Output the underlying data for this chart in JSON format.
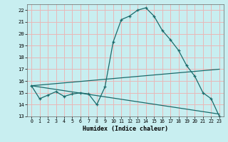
{
  "background_color": "#c8eef0",
  "grid_color": "#e8b8b8",
  "line_color": "#1a6b6b",
  "x_label": "Humidex (Indice chaleur)",
  "ylim": [
    13,
    22.5
  ],
  "xlim": [
    -0.5,
    23.5
  ],
  "yticks": [
    13,
    14,
    15,
    16,
    17,
    18,
    19,
    20,
    21,
    22
  ],
  "xticks": [
    0,
    1,
    2,
    3,
    4,
    5,
    6,
    7,
    8,
    9,
    10,
    11,
    12,
    13,
    14,
    15,
    16,
    17,
    18,
    19,
    20,
    21,
    22,
    23
  ],
  "series1_x": [
    0,
    1,
    2,
    3,
    4,
    5,
    6,
    7,
    8,
    9,
    10,
    11,
    12,
    13,
    14,
    15,
    16,
    17,
    18,
    19,
    20,
    21,
    22,
    23
  ],
  "series1_y": [
    15.6,
    14.5,
    14.8,
    15.1,
    14.7,
    14.9,
    15.0,
    14.9,
    14.0,
    15.5,
    19.3,
    21.2,
    21.5,
    22.0,
    22.2,
    21.5,
    20.3,
    19.5,
    18.6,
    17.3,
    16.4,
    15.0,
    14.5,
    13.0
  ],
  "series2_x": [
    0,
    23
  ],
  "series2_y": [
    15.6,
    17.0
  ],
  "series3_x": [
    0,
    23
  ],
  "series3_y": [
    15.6,
    13.2
  ]
}
